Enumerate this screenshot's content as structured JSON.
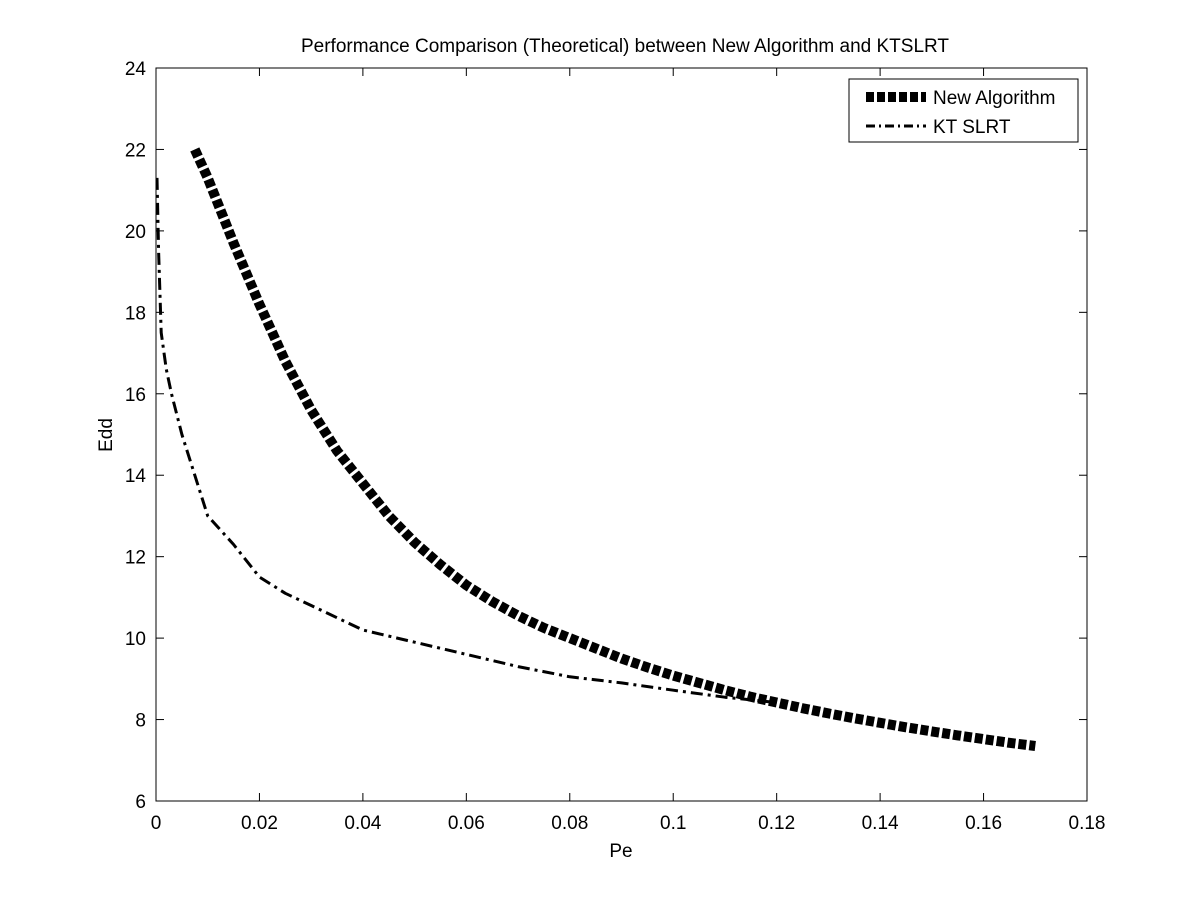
{
  "chart_data": {
    "type": "line",
    "title": "Performance Comparison (Theoretical) between New Algorithm and KTSLRT",
    "xlabel": "Pe",
    "ylabel": "Edd",
    "xlim": [
      0,
      0.18
    ],
    "ylim": [
      6,
      24
    ],
    "xticks": [
      0,
      0.02,
      0.04,
      0.06,
      0.08,
      0.1,
      0.12,
      0.14,
      0.16,
      0.18
    ],
    "xtick_labels": [
      "0",
      "0.02",
      "0.04",
      "0.06",
      "0.08",
      "0.1",
      "0.12",
      "0.14",
      "0.16",
      "0.18"
    ],
    "yticks": [
      6,
      8,
      10,
      12,
      14,
      16,
      18,
      20,
      22,
      24
    ],
    "ytick_labels": [
      "6",
      "8",
      "10",
      "12",
      "14",
      "16",
      "18",
      "20",
      "22",
      "24"
    ],
    "grid": false,
    "legend_position": "top-right",
    "series": [
      {
        "name": "New Algorithm",
        "style": "thick-dotted",
        "color": "#000000",
        "x": [
          0.0075,
          0.01,
          0.015,
          0.02,
          0.025,
          0.03,
          0.035,
          0.04,
          0.045,
          0.05,
          0.055,
          0.06,
          0.065,
          0.07,
          0.075,
          0.08,
          0.085,
          0.09,
          0.095,
          0.1,
          0.105,
          0.11,
          0.115,
          0.12,
          0.125,
          0.13,
          0.135,
          0.14,
          0.145,
          0.15,
          0.155,
          0.16,
          0.165,
          0.17
        ],
        "y": [
          22.0,
          21.3,
          19.7,
          18.2,
          16.8,
          15.6,
          14.6,
          13.8,
          13.0,
          12.35,
          11.8,
          11.3,
          10.9,
          10.55,
          10.25,
          10.0,
          9.75,
          9.5,
          9.28,
          9.08,
          8.9,
          8.72,
          8.56,
          8.42,
          8.28,
          8.15,
          8.03,
          7.92,
          7.81,
          7.71,
          7.61,
          7.52,
          7.43,
          7.35
        ]
      },
      {
        "name": "KT SLRT",
        "style": "dash-dot",
        "color": "#000000",
        "x": [
          0.0002,
          0.0005,
          0.001,
          0.002,
          0.003,
          0.005,
          0.0075,
          0.01,
          0.015,
          0.02,
          0.025,
          0.03,
          0.04,
          0.05,
          0.06,
          0.07,
          0.08,
          0.09,
          0.1,
          0.11,
          0.12
        ],
        "y": [
          21.3,
          19.5,
          17.5,
          16.6,
          16.0,
          15.0,
          14.0,
          13.0,
          12.3,
          11.5,
          11.1,
          10.8,
          10.2,
          9.9,
          9.6,
          9.3,
          9.05,
          8.9,
          8.72,
          8.55,
          8.42
        ]
      }
    ]
  }
}
